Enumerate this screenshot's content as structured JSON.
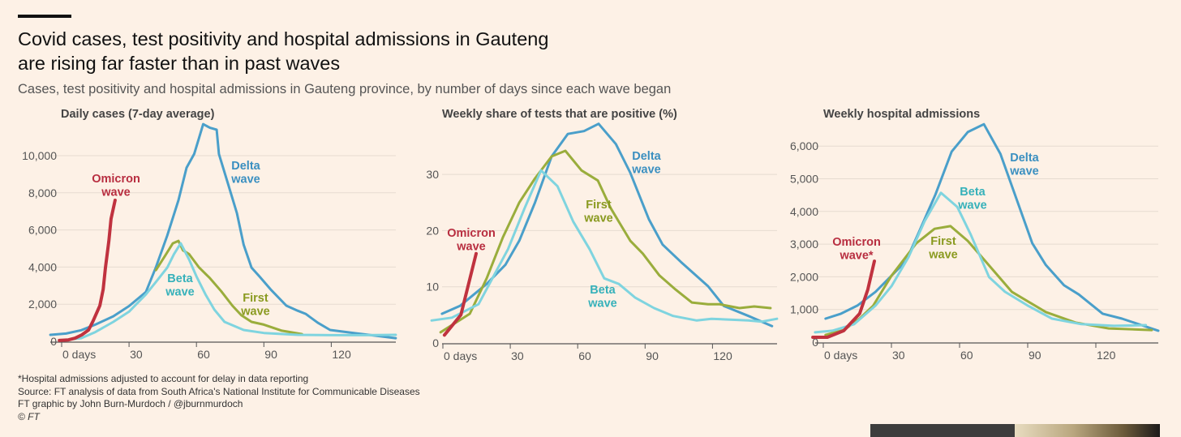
{
  "header": {
    "title_line1": "Covid cases, test positivity and hospital admissions in Gauteng",
    "title_line2": "are rising far faster than in past waves",
    "subtitle": "Cases, test positivity and hospital admissions in Gauteng province, by number of days since each wave began"
  },
  "footer": {
    "note": "*Hospital admissions adjusted to account for delay in data reporting",
    "source": "Source: FT analysis of data from South Africa's National Institute for Communicable Diseases",
    "credit": "FT graphic by John Burn-Murdoch / @jburnmurdoch",
    "copyright": "© FT"
  },
  "colors": {
    "background": "#fdf1e6",
    "delta": "#4a9fca",
    "first": "#9aad3c",
    "beta": "#7fd4df",
    "omicron": "#c0323f"
  },
  "chart_data": [
    {
      "type": "line",
      "title": "Daily cases (7-day average)",
      "xlabel": "",
      "ylabel": "",
      "xlim": [
        -5,
        149
      ],
      "ylim": [
        0,
        11800
      ],
      "xticks": [
        0,
        30,
        60,
        90,
        120
      ],
      "xtick_labels": [
        "0 days",
        "30",
        "60",
        "90",
        "120"
      ],
      "yticks": [
        0,
        2000,
        4000,
        6000,
        8000,
        10000
      ],
      "ytick_labels": [
        "0",
        "2,000",
        "4,000",
        "6,000",
        "8,000",
        "10,000"
      ],
      "grid": true,
      "series": [
        {
          "name": "Delta wave",
          "label_lines": [
            "Delta",
            "wave"
          ],
          "color": "#4a9fca",
          "label_color": "#3a8fc0",
          "points": [
            [
              -5,
              350
            ],
            [
              2,
              420
            ],
            [
              8.7,
              600
            ],
            [
              15,
              900
            ],
            [
              23,
              1350
            ],
            [
              30,
              1900
            ],
            [
              37.5,
              2660
            ],
            [
              42,
              4000
            ],
            [
              47,
              5700
            ],
            [
              52,
              7600
            ],
            [
              55.6,
              9350
            ],
            [
              59,
              10090
            ],
            [
              61,
              10900
            ],
            [
              63,
              11700
            ],
            [
              66,
              11500
            ],
            [
              69,
              11400
            ],
            [
              70,
              10090
            ],
            [
              74,
              8500
            ],
            [
              78,
              6900
            ],
            [
              81,
              5200
            ],
            [
              84.5,
              3970
            ],
            [
              88,
              3500
            ],
            [
              93,
              2800
            ],
            [
              100,
              1920
            ],
            [
              105,
              1650
            ],
            [
              108.6,
              1480
            ],
            [
              114,
              1000
            ],
            [
              119.5,
              610
            ],
            [
              130,
              450
            ],
            [
              140,
              300
            ],
            [
              148.7,
              170
            ]
          ]
        },
        {
          "name": "First wave",
          "label_lines": [
            "First",
            "wave"
          ],
          "color": "#9aad3c",
          "label_color": "#8a9a20",
          "points": [
            [
              42,
              3840
            ],
            [
              46,
              4600
            ],
            [
              49.5,
              5280
            ],
            [
              52,
              5410
            ],
            [
              54,
              4900
            ],
            [
              56.7,
              4700
            ],
            [
              61,
              4000
            ],
            [
              66,
              3400
            ],
            [
              71,
              2700
            ],
            [
              76,
              1920
            ],
            [
              80,
              1400
            ],
            [
              84.5,
              1050
            ],
            [
              90,
              900
            ],
            [
              98,
              570
            ],
            [
              107,
              390
            ]
          ]
        },
        {
          "name": "Beta wave",
          "label_lines": [
            "Beta",
            "wave"
          ],
          "color": "#7fd4df",
          "label_color": "#36b1ba",
          "points": [
            [
              5,
              120
            ],
            [
              8.7,
              170
            ],
            [
              15,
              500
            ],
            [
              23,
              1050
            ],
            [
              30,
              1600
            ],
            [
              37.5,
              2530
            ],
            [
              42,
              3200
            ],
            [
              47,
              3970
            ],
            [
              50,
              4700
            ],
            [
              53,
              5280
            ],
            [
              56.7,
              4410
            ],
            [
              60,
              3500
            ],
            [
              64,
              2530
            ],
            [
              68,
              1700
            ],
            [
              72.5,
              1050
            ],
            [
              81,
              610
            ],
            [
              90,
              450
            ],
            [
              105,
              350
            ],
            [
              120,
              330
            ],
            [
              135,
              330
            ],
            [
              148.7,
              350
            ]
          ]
        },
        {
          "name": "Omicron wave",
          "label_lines": [
            "Omicron",
            "wave"
          ],
          "color": "#c0323f",
          "label_color": "#b82e40",
          "points": [
            [
              -1,
              50
            ],
            [
              3,
              80
            ],
            [
              6,
              170
            ],
            [
              9,
              350
            ],
            [
              12,
              610
            ],
            [
              14,
              1100
            ],
            [
              17,
              1920
            ],
            [
              18.5,
              2800
            ],
            [
              19.5,
              3970
            ],
            [
              21,
              5400
            ],
            [
              22,
              6600
            ],
            [
              23.8,
              7600
            ]
          ]
        }
      ]
    },
    {
      "type": "line",
      "title": "Weekly share of tests that are positive (%)",
      "xlabel": "",
      "ylabel": "",
      "xlim": [
        -5,
        149
      ],
      "ylim": [
        0,
        39
      ],
      "xticks": [
        0,
        30,
        60,
        90,
        120
      ],
      "xtick_labels": [
        "0 days",
        "30",
        "60",
        "90",
        "120"
      ],
      "yticks": [
        0,
        10,
        20,
        30
      ],
      "ytick_labels": [
        "0",
        "10",
        "20",
        "30"
      ],
      "grid": true,
      "series": [
        {
          "name": "Delta wave",
          "label_lines": [
            "Delta",
            "wave"
          ],
          "color": "#4a9fca",
          "label_color": "#3a8fc0",
          "points": [
            [
              -0.4,
              5.2
            ],
            [
              7.6,
              6.6
            ],
            [
              19.5,
              10.5
            ],
            [
              27.8,
              13.9
            ],
            [
              34,
              18.2
            ],
            [
              41,
              25
            ],
            [
              48.4,
              33.2
            ],
            [
              55.6,
              37.2
            ],
            [
              62.8,
              37.7
            ],
            [
              69.3,
              39
            ],
            [
              77,
              35.4
            ],
            [
              83.4,
              30.3
            ],
            [
              91.7,
              22
            ],
            [
              97.8,
              17.5
            ],
            [
              106,
              14.4
            ],
            [
              118,
              10.1
            ],
            [
              125,
              6.6
            ],
            [
              136,
              4.8
            ],
            [
              146.5,
              3
            ]
          ]
        },
        {
          "name": "First wave",
          "label_lines": [
            "First",
            "wave"
          ],
          "color": "#9aad3c",
          "label_color": "#8a9a20",
          "points": [
            [
              -1,
              1.9
            ],
            [
              12,
              5.2
            ],
            [
              19.5,
              11.5
            ],
            [
              26.7,
              18.8
            ],
            [
              34,
              25
            ],
            [
              41,
              29.3
            ],
            [
              48.4,
              33.2
            ],
            [
              54.5,
              34.2
            ],
            [
              61.7,
              30.7
            ],
            [
              69,
              28.9
            ],
            [
              74.7,
              24
            ],
            [
              83.4,
              18.2
            ],
            [
              89,
              15.9
            ],
            [
              96.4,
              12
            ],
            [
              103.6,
              9.5
            ],
            [
              110.8,
              7.2
            ],
            [
              118,
              6.9
            ],
            [
              123,
              6.9
            ],
            [
              132,
              6.2
            ],
            [
              138.6,
              6.5
            ],
            [
              145.8,
              6.2
            ]
          ]
        },
        {
          "name": "Beta wave",
          "label_lines": [
            "Beta",
            "wave"
          ],
          "color": "#7fd4df",
          "label_color": "#36b1ba",
          "points": [
            [
              -5,
              4
            ],
            [
              4,
              4.5
            ],
            [
              15.9,
              6.9
            ],
            [
              29,
              16.7
            ],
            [
              36.4,
              24
            ],
            [
              43.7,
              30.7
            ],
            [
              51,
              27.9
            ],
            [
              58,
              21.6
            ],
            [
              65.3,
              16.7
            ],
            [
              71.8,
              11.5
            ],
            [
              78.3,
              10.5
            ],
            [
              85.5,
              8.1
            ],
            [
              94,
              6.2
            ],
            [
              102.5,
              4.8
            ],
            [
              113,
              4
            ],
            [
              119.5,
              4.3
            ],
            [
              136,
              4
            ],
            [
              142,
              3.8
            ],
            [
              148.7,
              4.3
            ]
          ]
        },
        {
          "name": "Omicron wave",
          "label_lines": [
            "Omicron",
            "wave"
          ],
          "color": "#c0323f",
          "label_color": "#b82e40",
          "points": [
            [
              0.7,
              1.4
            ],
            [
              8,
              5
            ],
            [
              14.8,
              15.9
            ]
          ]
        }
      ]
    },
    {
      "type": "line",
      "title": "Weekly hospital admissions",
      "xlabel": "",
      "ylabel": "",
      "xlim": [
        -5,
        148
      ],
      "ylim": [
        0,
        6700
      ],
      "xticks": [
        0,
        30,
        60,
        90,
        120
      ],
      "xtick_labels": [
        "0 days",
        "30",
        "60",
        "90",
        "120"
      ],
      "yticks": [
        0,
        1000,
        2000,
        3000,
        4000,
        5000,
        6000
      ],
      "ytick_labels": [
        "0",
        "1,000",
        "2,000",
        "3,000",
        "4,000",
        "5,000",
        "6,000"
      ],
      "grid": true,
      "series": [
        {
          "name": "Delta wave",
          "label_lines": [
            "Delta",
            "wave"
          ],
          "color": "#4a9fca",
          "label_color": "#3a8fc0",
          "points": [
            [
              1,
              720
            ],
            [
              7.8,
              870
            ],
            [
              15,
              1120
            ],
            [
              23,
              1540
            ],
            [
              36.4,
              2480
            ],
            [
              42,
              3350
            ],
            [
              49.4,
              4520
            ],
            [
              56.5,
              5830
            ],
            [
              63.6,
              6430
            ],
            [
              70.7,
              6670
            ],
            [
              78,
              5760
            ],
            [
              84,
              4590
            ],
            [
              92,
              3030
            ],
            [
              98,
              2360
            ],
            [
              106,
              1740
            ],
            [
              112.5,
              1460
            ],
            [
              123,
              870
            ],
            [
              131.5,
              720
            ],
            [
              147.5,
              350
            ]
          ]
        },
        {
          "name": "First wave",
          "label_lines": [
            "First",
            "wave"
          ],
          "color": "#9aad3c",
          "label_color": "#8a9a20",
          "points": [
            [
              1,
              220
            ],
            [
              9,
              370
            ],
            [
              16,
              720
            ],
            [
              22,
              1120
            ],
            [
              30,
              2030
            ],
            [
              41,
              3030
            ],
            [
              49,
              3470
            ],
            [
              56,
              3550
            ],
            [
              63.6,
              3100
            ],
            [
              70.7,
              2530
            ],
            [
              83,
              1540
            ],
            [
              98,
              920
            ],
            [
              111,
              600
            ],
            [
              125.7,
              420
            ],
            [
              144.6,
              370
            ]
          ]
        },
        {
          "name": "Beta wave",
          "label_lines": [
            "Beta",
            "wave"
          ],
          "color": "#7fd4df",
          "label_color": "#36b1ba",
          "points": [
            [
              -3.6,
              300
            ],
            [
              4,
              350
            ],
            [
              13.6,
              550
            ],
            [
              23,
              1120
            ],
            [
              30,
              1710
            ],
            [
              37.5,
              2600
            ],
            [
              44.6,
              3700
            ],
            [
              51.8,
              4570
            ],
            [
              59,
              4140
            ],
            [
              65,
              3280
            ],
            [
              73,
              1990
            ],
            [
              80,
              1540
            ],
            [
              90,
              1120
            ],
            [
              100.7,
              720
            ],
            [
              113.6,
              550
            ],
            [
              128,
              500
            ],
            [
              142,
              520
            ]
          ]
        },
        {
          "name": "Omicron wave",
          "label_lines": [
            "Omicron",
            "wave*"
          ],
          "color": "#c0323f",
          "label_color": "#b82e40",
          "points": [
            [
              -4.6,
              150
            ],
            [
              1.8,
              150
            ],
            [
              9,
              350
            ],
            [
              16,
              870
            ],
            [
              19.6,
              1610
            ],
            [
              22.5,
              2480
            ]
          ]
        }
      ]
    }
  ]
}
